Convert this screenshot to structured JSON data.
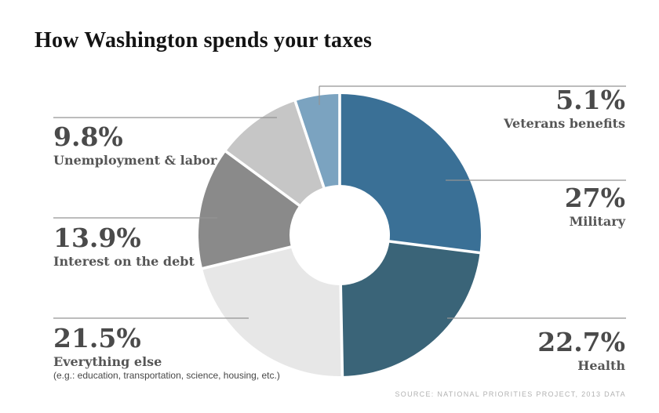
{
  "chart_data": {
    "type": "pie",
    "variant": "donut",
    "title": "How Washington spends your taxes",
    "start_angle_deg": 0,
    "direction": "clockwise",
    "unit": "%",
    "slices": [
      {
        "label": "Military",
        "value": 27,
        "display": "27%",
        "color": "#3a7096"
      },
      {
        "label": "Health",
        "value": 22.7,
        "display": "22.7%",
        "color": "#3a6478"
      },
      {
        "label": "Everything else",
        "value": 21.5,
        "display": "21.5%",
        "color": "#e7e7e7",
        "sublabel": "(e.g.: education, transportation, science, housing, etc.)"
      },
      {
        "label": "Interest on the debt",
        "value": 13.9,
        "display": "13.9%",
        "color": "#8a8a8a"
      },
      {
        "label": "Unemployment & labor",
        "value": 9.8,
        "display": "9.8%",
        "color": "#c6c6c6"
      },
      {
        "label": "Veterans benefits",
        "value": 5.1,
        "display": "5.1%",
        "color": "#7ba3c0"
      }
    ],
    "source": "SOURCE: NATIONAL PRIORITIES PROJECT, 2013 DATA"
  }
}
